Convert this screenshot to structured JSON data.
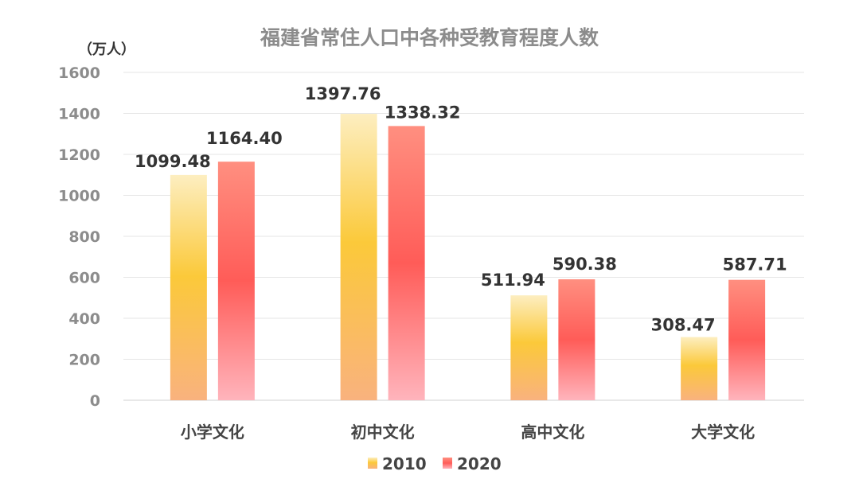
{
  "chart_data": {
    "type": "bar",
    "title": "福建省常住人口中各种受教育程度人数",
    "unit": "（万人）",
    "categories": [
      "小学文化",
      "初中文化",
      "高中文化",
      "大学文化"
    ],
    "series": [
      {
        "name": "2010",
        "values": [
          1099.48,
          1397.76,
          511.94,
          308.47
        ],
        "color": "#fbc93a"
      },
      {
        "name": "2020",
        "values": [
          1164.4,
          1338.32,
          590.38,
          587.71
        ],
        "color": "#ff6b63"
      }
    ],
    "yticks": [
      0,
      200,
      400,
      600,
      800,
      1000,
      1200,
      1400,
      1600
    ],
    "ylim": [
      0,
      1600
    ],
    "grid": true,
    "legend": "bottom"
  }
}
